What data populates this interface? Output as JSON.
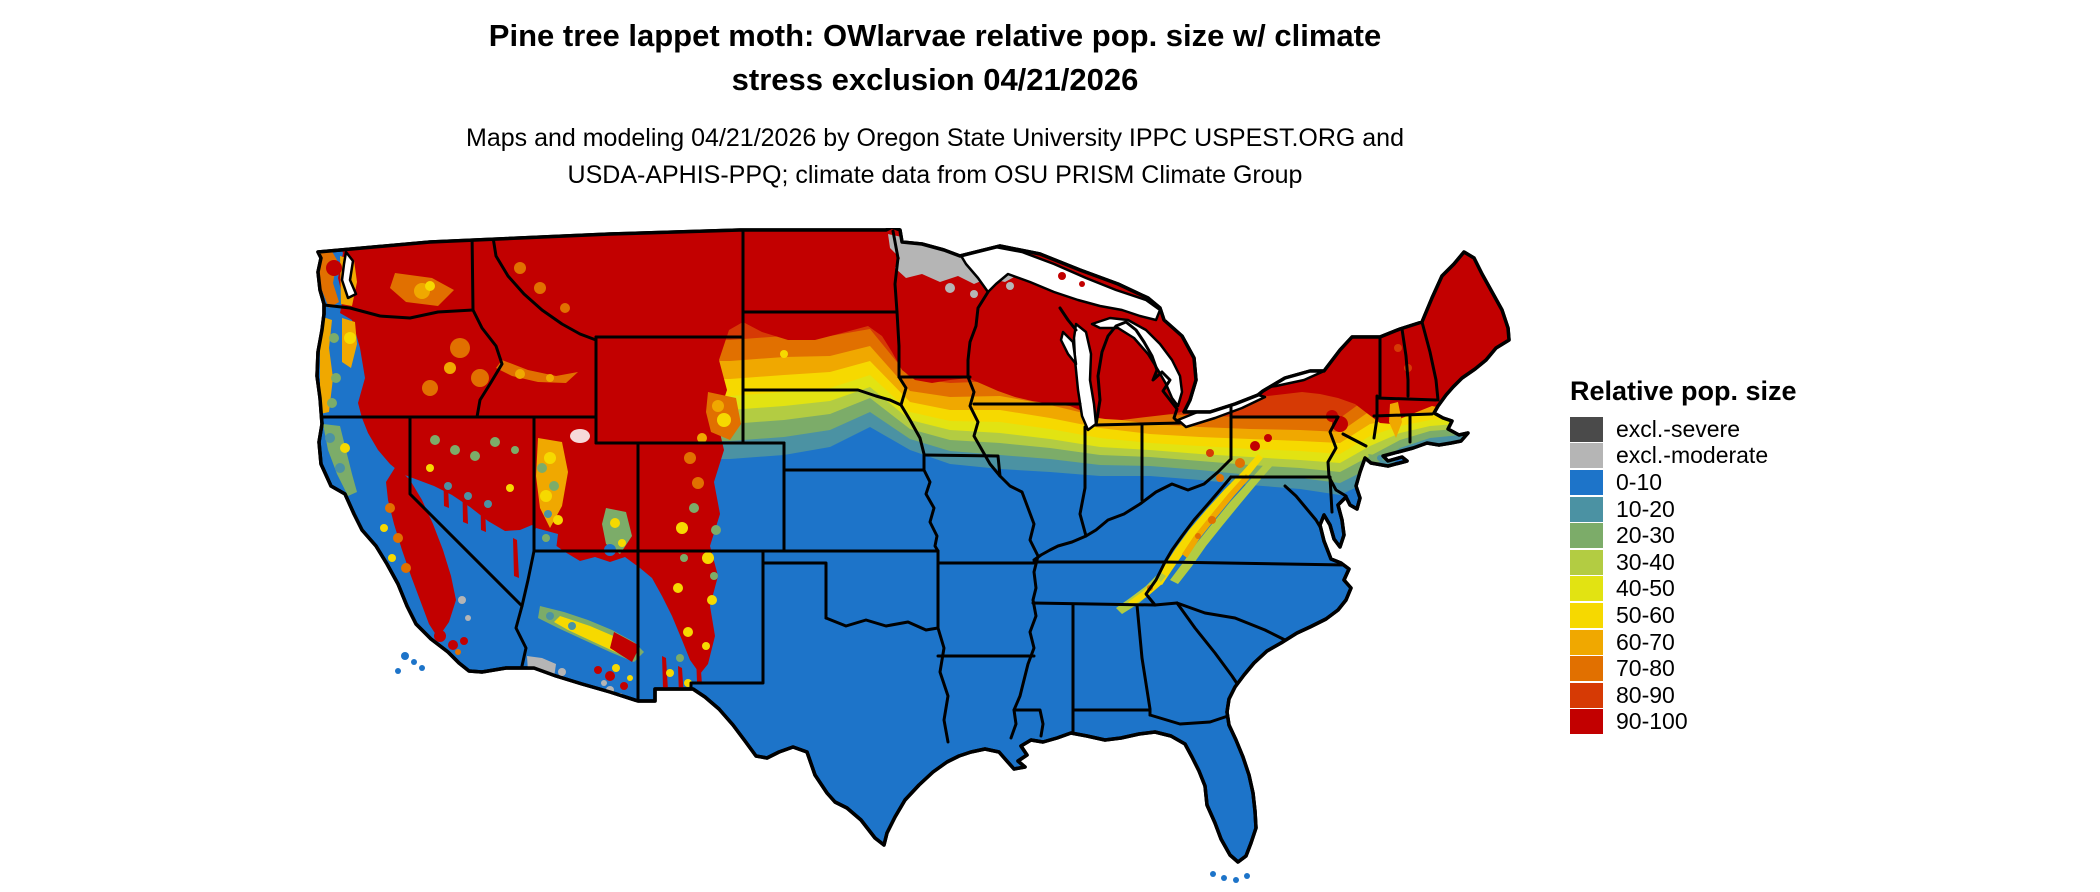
{
  "title": {
    "line1": "Pine tree lappet moth: OWlarvae relative pop. size w/ climate",
    "line2": "stress exclusion 04/21/2026"
  },
  "subtitle": {
    "line1": "Maps and modeling 04/21/2026 by Oregon State University IPPC USPEST.ORG and",
    "line2": "USDA-APHIS-PPQ; climate data from OSU PRISM Climate Group"
  },
  "legend": {
    "title": "Relative pop. size",
    "items": [
      {
        "label": "excl.-severe",
        "color": "p_severe"
      },
      {
        "label": "excl.-moderate",
        "color": "p_moderate"
      },
      {
        "label": "0-10",
        "color": "p0"
      },
      {
        "label": "10-20",
        "color": "p10"
      },
      {
        "label": "20-30",
        "color": "p20"
      },
      {
        "label": "30-40",
        "color": "p30"
      },
      {
        "label": "40-50",
        "color": "p40"
      },
      {
        "label": "50-60",
        "color": "p50"
      },
      {
        "label": "60-70",
        "color": "p60"
      },
      {
        "label": "70-80",
        "color": "p70"
      },
      {
        "label": "80-90",
        "color": "p80"
      },
      {
        "label": "90-100",
        "color": "p90"
      }
    ]
  },
  "palette": {
    "p_severe": "#4a4a4a",
    "p_moderate": "#b5b5b5",
    "p0": "#1d74c9",
    "p10": "#4b92a3",
    "p20": "#7cac69",
    "p30": "#b3cc42",
    "p40": "#e2e312",
    "p50": "#f6d900",
    "p60": "#f0a800",
    "p70": "#e17000",
    "p80": "#d63a05",
    "p90": "#c20000"
  }
}
